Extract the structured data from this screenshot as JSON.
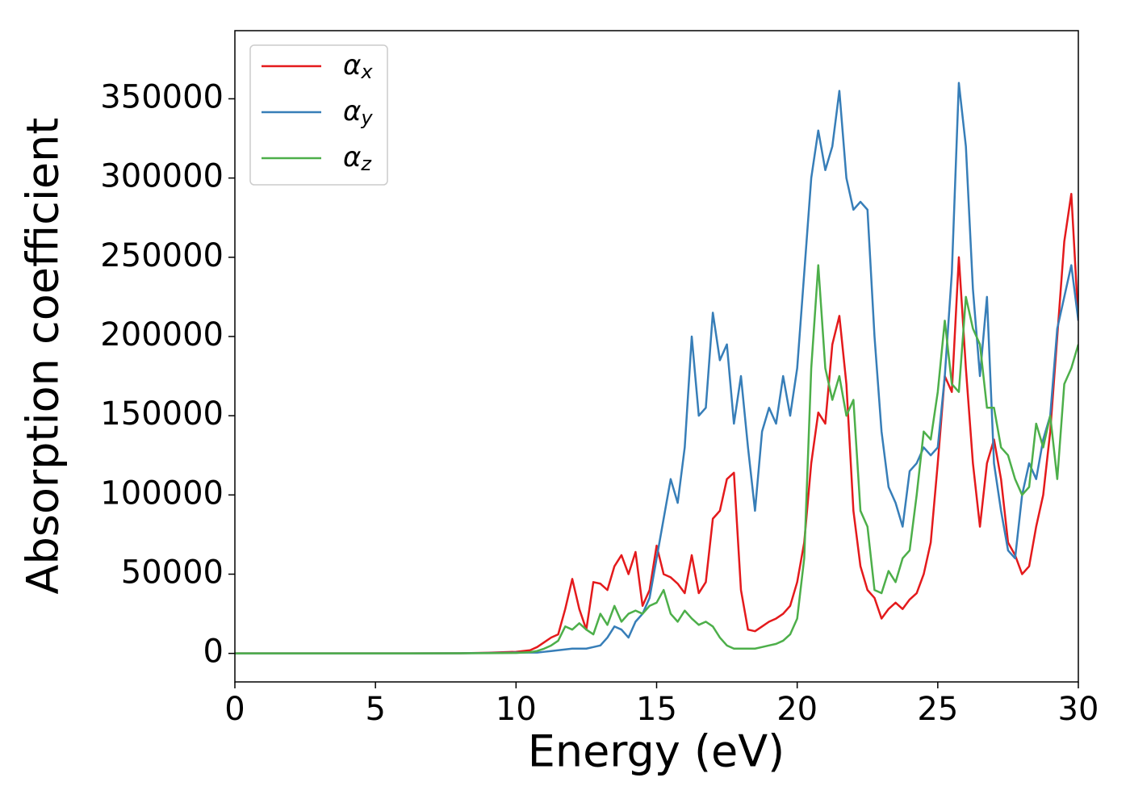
{
  "chart_data": {
    "type": "line",
    "xlabel": "Energy (eV)",
    "ylabel": "Absorption coefficient",
    "x": [
      0,
      5,
      8,
      9,
      10,
      10.25,
      10.5,
      10.75,
      11,
      11.25,
      11.5,
      11.75,
      12,
      12.25,
      12.5,
      12.75,
      13,
      13.25,
      13.5,
      13.75,
      14,
      14.25,
      14.5,
      14.75,
      15,
      15.25,
      15.5,
      15.75,
      16,
      16.25,
      16.5,
      16.75,
      17,
      17.25,
      17.5,
      17.75,
      18,
      18.25,
      18.5,
      18.75,
      19,
      19.25,
      19.5,
      19.75,
      20,
      20.25,
      20.5,
      20.75,
      21,
      21.25,
      21.5,
      21.75,
      22,
      22.25,
      22.5,
      22.75,
      23,
      23.25,
      23.5,
      23.75,
      24,
      24.25,
      24.5,
      24.75,
      25,
      25.25,
      25.5,
      25.75,
      26,
      26.25,
      26.5,
      26.75,
      27,
      27.25,
      27.5,
      27.75,
      28,
      28.25,
      28.5,
      28.75,
      29,
      29.25,
      29.5,
      29.75,
      30
    ],
    "series": [
      {
        "name": "αx",
        "color": "#e41a1c",
        "values": [
          0,
          0,
          100,
          400,
          1000,
          1500,
          2000,
          4000,
          7000,
          10000,
          12000,
          28000,
          47000,
          28000,
          15000,
          45000,
          44000,
          40000,
          55000,
          62000,
          50000,
          64000,
          30000,
          40000,
          68000,
          50000,
          48000,
          44000,
          38000,
          62000,
          38000,
          45000,
          85000,
          90000,
          110000,
          114000,
          40000,
          15000,
          14000,
          17000,
          20000,
          22000,
          25000,
          30000,
          45000,
          70000,
          120000,
          152000,
          145000,
          195000,
          213000,
          170000,
          90000,
          55000,
          40000,
          35000,
          22000,
          28000,
          32000,
          28000,
          34000,
          38000,
          50000,
          70000,
          120000,
          175000,
          165000,
          250000,
          180000,
          120000,
          80000,
          120000,
          135000,
          110000,
          70000,
          62000,
          50000,
          55000,
          80000,
          100000,
          140000,
          200000,
          260000,
          290000,
          210000
        ]
      },
      {
        "name": "αy",
        "color": "#377eb8",
        "values": [
          0,
          0,
          100,
          300,
          500,
          500,
          500,
          500,
          1000,
          1500,
          2000,
          2500,
          3000,
          3000,
          3000,
          4000,
          5000,
          10000,
          17000,
          15000,
          10000,
          20000,
          25000,
          35000,
          60000,
          85000,
          110000,
          95000,
          130000,
          200000,
          150000,
          155000,
          215000,
          185000,
          195000,
          145000,
          175000,
          130000,
          90000,
          140000,
          155000,
          145000,
          175000,
          150000,
          180000,
          240000,
          300000,
          330000,
          305000,
          320000,
          355000,
          300000,
          280000,
          285000,
          280000,
          200000,
          140000,
          105000,
          95000,
          80000,
          115000,
          120000,
          130000,
          125000,
          130000,
          175000,
          240000,
          360000,
          320000,
          230000,
          175000,
          225000,
          120000,
          90000,
          65000,
          60000,
          100000,
          120000,
          110000,
          135000,
          150000,
          205000,
          225000,
          245000,
          210000
        ]
      },
      {
        "name": "αz",
        "color": "#4daf4a",
        "values": [
          0,
          0,
          50,
          150,
          300,
          500,
          800,
          1500,
          3000,
          5000,
          8000,
          17000,
          15000,
          19000,
          15000,
          12000,
          25000,
          18000,
          30000,
          20000,
          25000,
          27000,
          25000,
          30000,
          32000,
          40000,
          25000,
          20000,
          27000,
          22000,
          18000,
          20000,
          17000,
          10000,
          5000,
          3000,
          3000,
          3000,
          3000,
          4000,
          5000,
          6000,
          8000,
          12000,
          22000,
          60000,
          180000,
          245000,
          180000,
          160000,
          175000,
          150000,
          160000,
          90000,
          80000,
          40000,
          38000,
          52000,
          45000,
          60000,
          65000,
          100000,
          140000,
          135000,
          165000,
          210000,
          170000,
          165000,
          225000,
          205000,
          195000,
          155000,
          155000,
          130000,
          125000,
          110000,
          100000,
          105000,
          145000,
          130000,
          150000,
          110000,
          170000,
          180000,
          195000
        ]
      }
    ],
    "xlim": [
      0,
      30
    ],
    "xticks": [
      0,
      5,
      10,
      15,
      20,
      25,
      30
    ],
    "ylim": [
      -18000,
      393000
    ],
    "yticks": [
      0,
      50000,
      100000,
      150000,
      200000,
      250000,
      300000,
      350000
    ],
    "legend": "upper left"
  }
}
